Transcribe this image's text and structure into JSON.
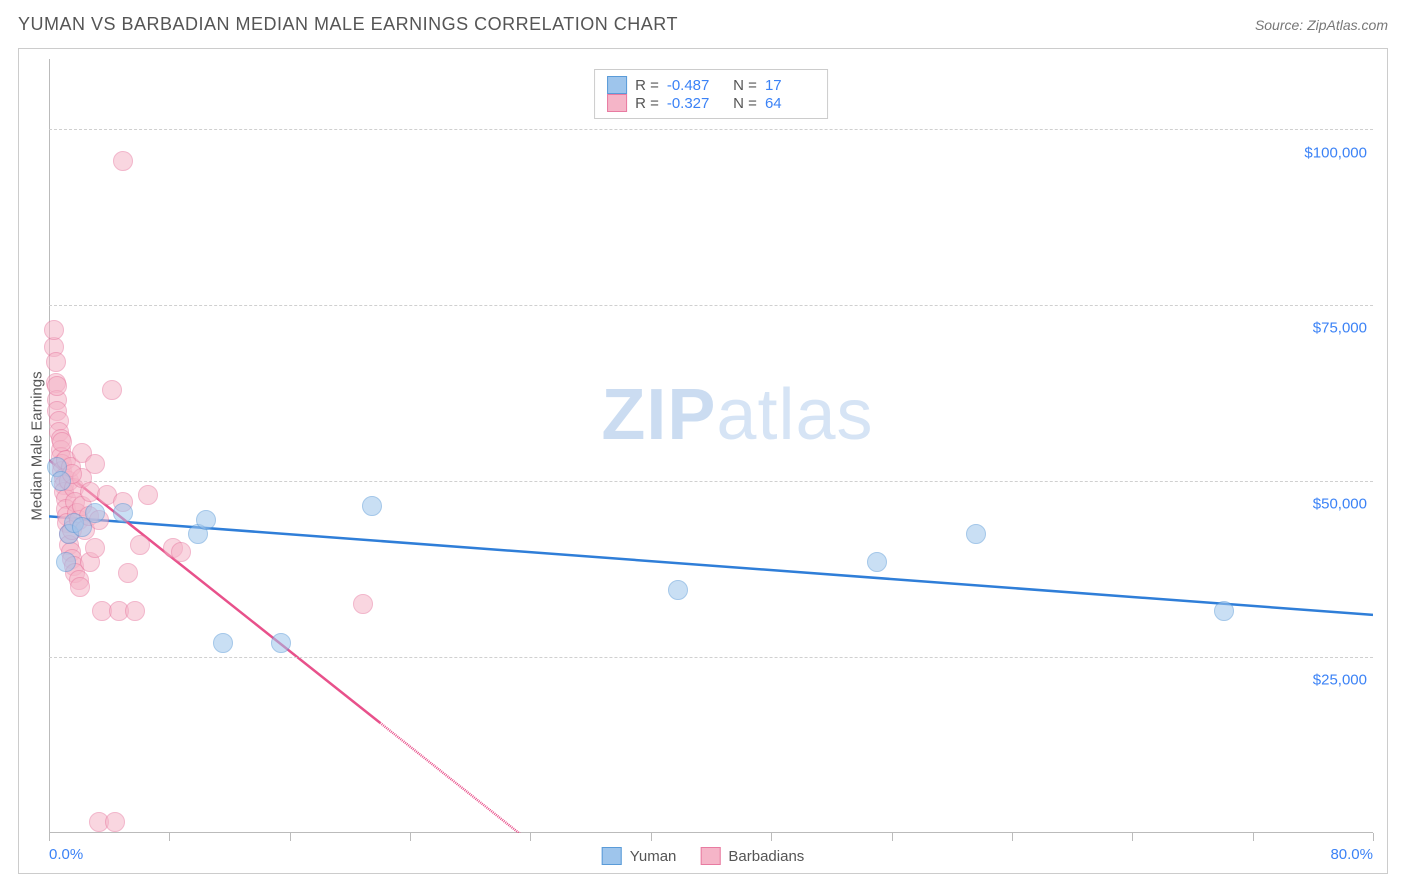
{
  "header": {
    "title": "YUMAN VS BARBADIAN MEDIAN MALE EARNINGS CORRELATION CHART",
    "source": "Source: ZipAtlas.com"
  },
  "watermark": {
    "bold": "ZIP",
    "rest": "atlas"
  },
  "chart": {
    "type": "scatter",
    "y_axis_title": "Median Male Earnings",
    "background_color": "#ffffff",
    "grid_color": "#d0d0d0",
    "axis_color": "#bbbbbb",
    "tick_label_color": "#3b82f6",
    "xlim": [
      0,
      80
    ],
    "ylim": [
      0,
      110000
    ],
    "x_tick_positions": [
      0,
      7.27,
      14.55,
      21.82,
      29.09,
      36.36,
      43.64,
      50.91,
      58.18,
      65.45,
      72.73,
      80
    ],
    "x_tick_labels_shown": {
      "min": "0.0%",
      "max": "80.0%"
    },
    "y_gridlines": [
      25000,
      50000,
      75000,
      100000
    ],
    "y_tick_labels": [
      "$25,000",
      "$50,000",
      "$75,000",
      "$100,000"
    ],
    "series": [
      {
        "name": "Yuman",
        "fill_color": "#9ec5ec",
        "stroke_color": "#5a9bd8",
        "fill_opacity": 0.55,
        "marker_radius": 10,
        "trend_color": "#2f7ed8",
        "trend_width": 2.5,
        "trend_dash_after_x": null,
        "r": "-0.487",
        "n": "17",
        "trend": {
          "x1": 0,
          "y1": 45000,
          "x2": 80,
          "y2": 31000
        },
        "points": [
          {
            "x": 0.5,
            "y": 52000
          },
          {
            "x": 0.7,
            "y": 50000
          },
          {
            "x": 1.0,
            "y": 38500
          },
          {
            "x": 1.2,
            "y": 42500
          },
          {
            "x": 1.5,
            "y": 44000
          },
          {
            "x": 2.0,
            "y": 43500
          },
          {
            "x": 2.8,
            "y": 45500
          },
          {
            "x": 4.5,
            "y": 45500
          },
          {
            "x": 9.0,
            "y": 42500
          },
          {
            "x": 9.5,
            "y": 44500
          },
          {
            "x": 10.5,
            "y": 27000
          },
          {
            "x": 14.0,
            "y": 27000
          },
          {
            "x": 19.5,
            "y": 46500
          },
          {
            "x": 38.0,
            "y": 34500
          },
          {
            "x": 50.0,
            "y": 38500
          },
          {
            "x": 56.0,
            "y": 42500
          },
          {
            "x": 71.0,
            "y": 31500
          }
        ]
      },
      {
        "name": "Barbadians",
        "fill_color": "#f5b5c8",
        "stroke_color": "#e87ba1",
        "fill_opacity": 0.55,
        "marker_radius": 10,
        "trend_color": "#e8518b",
        "trend_width": 2.5,
        "trend_dash_after_x": 20,
        "r": "-0.327",
        "n": "64",
        "trend": {
          "x1": 0,
          "y1": 53000,
          "x2": 30,
          "y2": -3000
        },
        "points": [
          {
            "x": 0.3,
            "y": 69000
          },
          {
            "x": 0.3,
            "y": 71500
          },
          {
            "x": 0.4,
            "y": 67000
          },
          {
            "x": 0.4,
            "y": 64000
          },
          {
            "x": 0.5,
            "y": 61500
          },
          {
            "x": 0.5,
            "y": 63500
          },
          {
            "x": 0.5,
            "y": 60000
          },
          {
            "x": 0.6,
            "y": 58500
          },
          {
            "x": 0.6,
            "y": 57000
          },
          {
            "x": 0.7,
            "y": 56000
          },
          {
            "x": 0.7,
            "y": 54500
          },
          {
            "x": 0.7,
            "y": 53500
          },
          {
            "x": 0.8,
            "y": 52500
          },
          {
            "x": 0.8,
            "y": 51500
          },
          {
            "x": 0.8,
            "y": 55500
          },
          {
            "x": 0.9,
            "y": 50500
          },
          {
            "x": 0.9,
            "y": 49500
          },
          {
            "x": 0.9,
            "y": 48500
          },
          {
            "x": 1.0,
            "y": 47500
          },
          {
            "x": 1.0,
            "y": 46000
          },
          {
            "x": 1.0,
            "y": 53000
          },
          {
            "x": 1.1,
            "y": 45000
          },
          {
            "x": 1.1,
            "y": 44000
          },
          {
            "x": 1.2,
            "y": 50000
          },
          {
            "x": 1.2,
            "y": 42500
          },
          {
            "x": 1.2,
            "y": 41000
          },
          {
            "x": 1.3,
            "y": 52000
          },
          {
            "x": 1.3,
            "y": 40000
          },
          {
            "x": 1.4,
            "y": 39000
          },
          {
            "x": 1.4,
            "y": 43000
          },
          {
            "x": 1.5,
            "y": 38000
          },
          {
            "x": 1.5,
            "y": 49000
          },
          {
            "x": 1.6,
            "y": 37000
          },
          {
            "x": 1.6,
            "y": 47000
          },
          {
            "x": 1.7,
            "y": 45500
          },
          {
            "x": 1.8,
            "y": 36000
          },
          {
            "x": 1.8,
            "y": 44500
          },
          {
            "x": 1.9,
            "y": 35000
          },
          {
            "x": 2.0,
            "y": 46500
          },
          {
            "x": 2.0,
            "y": 50500
          },
          {
            "x": 2.0,
            "y": 54000
          },
          {
            "x": 2.2,
            "y": 43000
          },
          {
            "x": 2.4,
            "y": 45000
          },
          {
            "x": 2.5,
            "y": 38500
          },
          {
            "x": 2.5,
            "y": 48500
          },
          {
            "x": 2.8,
            "y": 40500
          },
          {
            "x": 2.8,
            "y": 52500
          },
          {
            "x": 3.0,
            "y": 1500
          },
          {
            "x": 3.0,
            "y": 44500
          },
          {
            "x": 3.2,
            "y": 31500
          },
          {
            "x": 3.5,
            "y": 48000
          },
          {
            "x": 3.8,
            "y": 63000
          },
          {
            "x": 4.0,
            "y": 1500
          },
          {
            "x": 4.2,
            "y": 31500
          },
          {
            "x": 4.5,
            "y": 47000
          },
          {
            "x": 4.5,
            "y": 95500
          },
          {
            "x": 4.8,
            "y": 37000
          },
          {
            "x": 5.2,
            "y": 31500
          },
          {
            "x": 5.5,
            "y": 41000
          },
          {
            "x": 6.0,
            "y": 48000
          },
          {
            "x": 7.5,
            "y": 40500
          },
          {
            "x": 8.0,
            "y": 40000
          },
          {
            "x": 19.0,
            "y": 32500
          },
          {
            "x": 1.4,
            "y": 51000
          }
        ]
      }
    ],
    "legend": {
      "items": [
        {
          "label": "Yuman",
          "fill": "#9ec5ec",
          "stroke": "#5a9bd8"
        },
        {
          "label": "Barbadians",
          "fill": "#f5b5c8",
          "stroke": "#e87ba1"
        }
      ]
    }
  }
}
